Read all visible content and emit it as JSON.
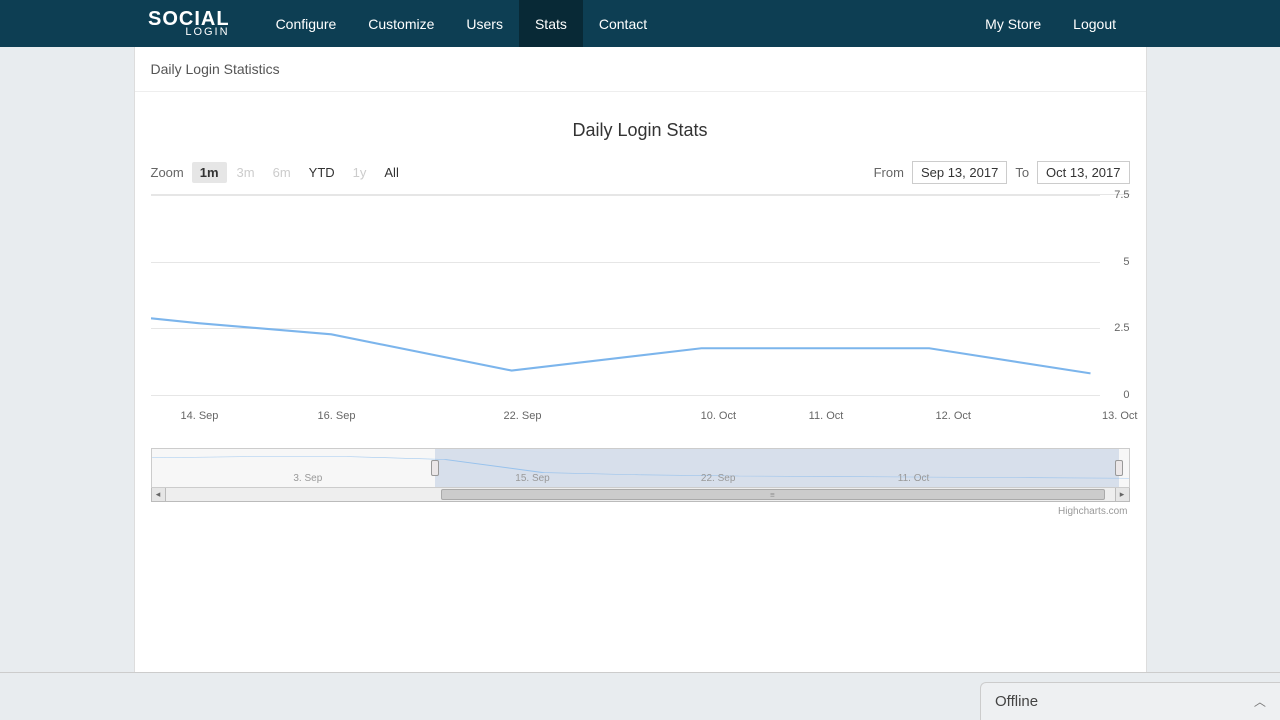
{
  "logo": {
    "main": "SOCIAL",
    "sub": "LOGIN"
  },
  "nav": {
    "items": [
      "Configure",
      "Customize",
      "Users",
      "Stats",
      "Contact"
    ],
    "active_index": 3,
    "right": [
      "My Store",
      "Logout"
    ]
  },
  "breadcrumb": "Daily Login Statistics",
  "chart": {
    "title": "Daily Login Stats",
    "zoom_label": "Zoom",
    "zoom_buttons": [
      {
        "label": "1m",
        "state": "active"
      },
      {
        "label": "3m",
        "state": "disabled"
      },
      {
        "label": "6m",
        "state": "disabled"
      },
      {
        "label": "YTD",
        "state": "enabled"
      },
      {
        "label": "1y",
        "state": "disabled"
      },
      {
        "label": "All",
        "state": "enabled"
      }
    ],
    "from_label": "From",
    "to_label": "To",
    "from_date": "Sep 13, 2017",
    "to_date": "Oct 13, 2017",
    "type": "line",
    "line_color": "#7cb5ec",
    "line_width": 2,
    "grid_color": "#e6e6e6",
    "background_color": "#ffffff",
    "ylim": [
      0,
      7.5
    ],
    "yticks": [
      0,
      2.5,
      5,
      7.5
    ],
    "x_categories": [
      "14. Sep",
      "16. Sep",
      "22. Sep",
      "10. Oct",
      "11. Oct",
      "12. Oct",
      "13. Oct"
    ],
    "x_positions_pct": [
      5,
      19,
      38,
      58,
      69,
      82,
      99
    ],
    "series_values": [
      2.9,
      2.5,
      1.2,
      2.0,
      2.0,
      2.0,
      1.1
    ],
    "label_fontsize": 11,
    "title_fontsize": 18,
    "credit": "Highcharts.com"
  },
  "navigator": {
    "x_labels": [
      "3. Sep",
      "15. Sep",
      "22. Sep",
      "11. Oct"
    ],
    "x_positions_pct": [
      16,
      39,
      58,
      78
    ],
    "selection_start_pct": 29,
    "selection_end_pct": 99,
    "mini_values": [
      4.8,
      5.0,
      5.0,
      4.5,
      2.2,
      1.8,
      1.6,
      1.5,
      1.4,
      1.3,
      1.2
    ],
    "line_color": "#7cb5ec",
    "mask_color": "rgba(120,150,200,0.25)"
  },
  "scrollbar": {
    "thumb_start_pct": 29,
    "thumb_end_pct": 99
  },
  "offline": {
    "label": "Offline"
  }
}
